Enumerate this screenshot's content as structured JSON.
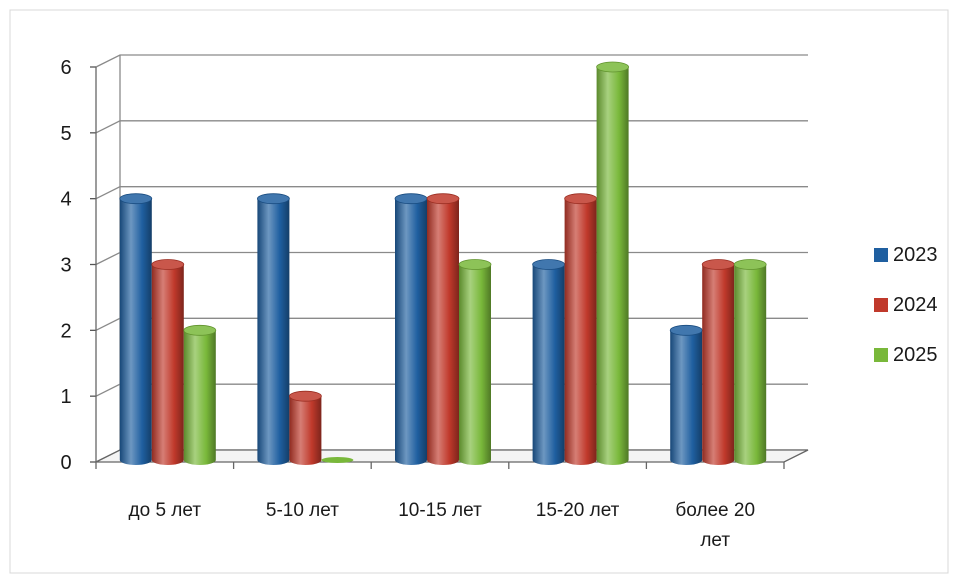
{
  "chart_data": {
    "type": "bar",
    "title": "",
    "xlabel": "",
    "ylabel": "",
    "categories": [
      [
        "до 5 лет"
      ],
      [
        "5-10 лет"
      ],
      [
        "10-15 лет"
      ],
      [
        "15-20 лет"
      ],
      [
        "более 20",
        "лет"
      ]
    ],
    "series": [
      {
        "name": "2023",
        "color": "#1f5fa0",
        "values": [
          4,
          4,
          4,
          3,
          2
        ]
      },
      {
        "name": "2024",
        "color": "#c0392b",
        "values": [
          3,
          1,
          4,
          4,
          3
        ]
      },
      {
        "name": "2025",
        "color": "#79b83a",
        "values": [
          2,
          0,
          3,
          6,
          3
        ]
      }
    ],
    "ylim": [
      0,
      6
    ],
    "yticks": [
      "0",
      "1",
      "2",
      "3",
      "4",
      "5",
      "6"
    ],
    "grid": true,
    "legend_position": "right",
    "style": "3d-cylinder"
  }
}
